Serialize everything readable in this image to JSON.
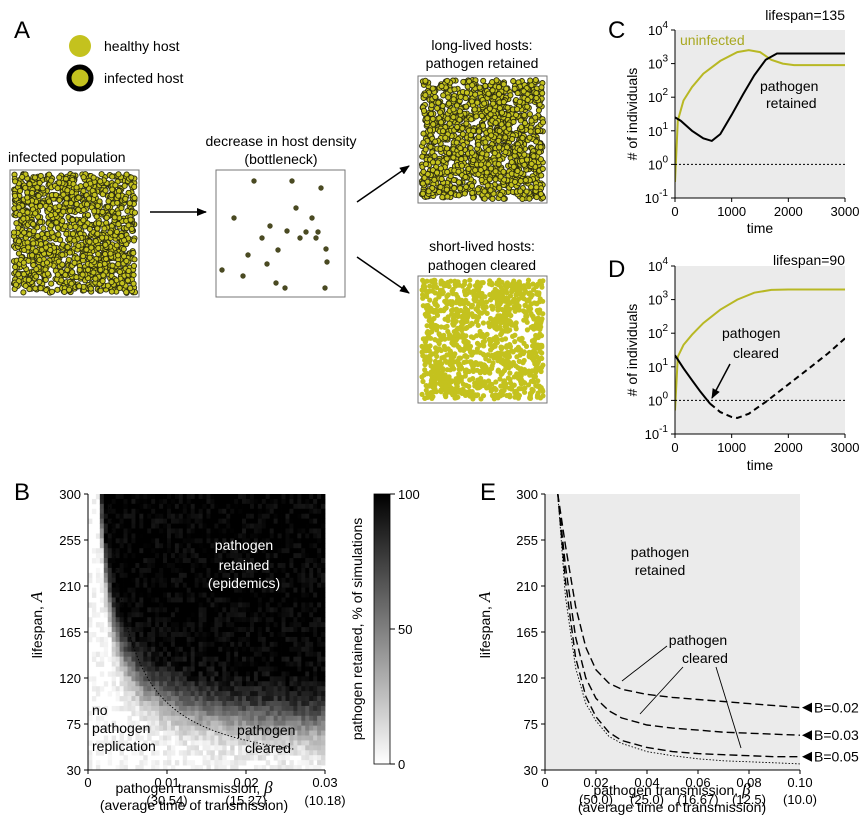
{
  "panel_letters": [
    "A",
    "B",
    "C",
    "D",
    "E"
  ],
  "colors": {
    "host": "#c4c21e",
    "healthy_line": "#b8b824",
    "infected": "#000000",
    "panel_bg": "#ebebeb"
  },
  "panel_a": {
    "legend": {
      "healthy": "healthy host",
      "infected": "infected host"
    },
    "boxes": {
      "infected_population": "infected population",
      "bottleneck_line1": "decrease in host density",
      "bottleneck_line2": "(bottleneck)",
      "retained_line1": "long-lived hosts:",
      "retained_line2": "pathogen retained",
      "cleared_line1": "short-lived hosts:",
      "cleared_line2": "pathogen cleared"
    }
  },
  "chart_data": [
    {
      "id": "C",
      "type": "line",
      "title": "lifespan=135",
      "xlabel": "time",
      "ylabel": "# of individuals",
      "xlim": [
        0,
        3000
      ],
      "xticks": [
        "0",
        "1000",
        "2000",
        "3000"
      ],
      "yscale": "log",
      "ylim": [
        0.1,
        10000
      ],
      "annotations": [
        "uninfected",
        "pathogen",
        "retained"
      ],
      "series": [
        {
          "name": "uninfected",
          "style": "solid",
          "color": "#b8b824",
          "x": [
            0,
            50,
            150,
            300,
            500,
            800,
            1100,
            1300,
            1500,
            1700,
            1900,
            2100,
            2400,
            2700,
            3000
          ],
          "y": [
            0.3,
            20,
            80,
            200,
            500,
            1200,
            2200,
            2500,
            2200,
            1300,
            1000,
            900,
            900,
            900,
            900
          ]
        },
        {
          "name": "",
          "style": "solid",
          "color": "#000000",
          "x": [
            0,
            100,
            300,
            500,
            650,
            800,
            1000,
            1200,
            1400,
            1600,
            1800,
            2000,
            2500,
            3000
          ],
          "y": [
            25,
            20,
            10,
            6,
            5,
            8,
            30,
            120,
            450,
            1300,
            2000,
            2000,
            2000,
            2000
          ]
        },
        {
          "name": "",
          "style": "dotted",
          "color": "#000000",
          "x": [
            0,
            3000
          ],
          "y": [
            1,
            1
          ]
        }
      ]
    },
    {
      "id": "D",
      "type": "line",
      "title": "lifespan=90",
      "xlabel": "time",
      "ylabel": "# of individuals",
      "xlim": [
        0,
        3000
      ],
      "xticks": [
        "0",
        "1000",
        "2000",
        "3000"
      ],
      "yscale": "log",
      "ylim": [
        0.1,
        10000
      ],
      "annotations": [
        "pathogen",
        "cleared"
      ],
      "series": [
        {
          "name": "",
          "style": "solid",
          "color": "#b8b824",
          "x": [
            0,
            50,
            150,
            300,
            500,
            800,
            1100,
            1400,
            1700,
            2000,
            2300,
            2600,
            3000
          ],
          "y": [
            0.5,
            20,
            45,
            90,
            200,
            500,
            1000,
            1600,
            1950,
            2000,
            2000,
            2000,
            2000
          ]
        },
        {
          "name": "",
          "style": "solid",
          "color": "#000000",
          "x": [
            0,
            150,
            300,
            450,
            620
          ],
          "y": [
            22,
            9,
            4,
            1.8,
            0.8
          ]
        },
        {
          "name": "",
          "style": "dashed",
          "color": "#000000",
          "x": [
            620,
            800,
            1000,
            1100,
            1300,
            1600,
            2000,
            2400,
            2700,
            3000
          ],
          "y": [
            0.8,
            0.45,
            0.32,
            0.3,
            0.4,
            0.9,
            3,
            10,
            25,
            70
          ]
        },
        {
          "name": "",
          "style": "dotted",
          "color": "#000000",
          "x": [
            0,
            3000
          ],
          "y": [
            1,
            1
          ]
        }
      ]
    },
    {
      "id": "B",
      "type": "heatmap",
      "xlabel_line1": "pathogen transmission,",
      "xlabel_symbol": "β",
      "xlabel_line2": "(average time of transmission)",
      "ylabel": "lifespan,",
      "ylabel_symbol": "A",
      "xlim": [
        0,
        0.03
      ],
      "ylim": [
        30,
        300
      ],
      "xticks": [
        "0",
        "0.01",
        "0.02",
        "0.03"
      ],
      "xticks_sub": [
        "(30.54)",
        "(15.27)",
        "(10.18)"
      ],
      "yticks": [
        "30",
        "75",
        "120",
        "165",
        "210",
        "255",
        "300"
      ],
      "colorbar": {
        "label": "pathogen  retained,  % of simulations",
        "ticks": [
          "0",
          "50",
          "100"
        ],
        "range": [
          0,
          100
        ]
      },
      "annotations": {
        "retained": [
          "pathogen",
          "retained",
          "(epidemics)"
        ],
        "no_replication": [
          "no",
          "pathogen",
          "replication"
        ],
        "cleared": [
          "pathogen",
          "cleared"
        ]
      },
      "boundary_note": "dotted line: threshold for pathogen replication"
    },
    {
      "id": "E",
      "type": "line",
      "xlabel_line1": "pathogen transmission,",
      "xlabel_symbol": "β",
      "xlabel_line2": "(average time of transmission)",
      "ylabel": "lifespan,",
      "ylabel_symbol": "A",
      "xlim": [
        0,
        0.1
      ],
      "ylim": [
        30,
        300
      ],
      "xticks": [
        "0",
        "0.02",
        "0.04",
        "0.06",
        "0.08",
        "0.10"
      ],
      "xticks_sub": [
        "(50.0)",
        "(25.0)",
        "(16.67)",
        "(12.5)",
        "(10.0)"
      ],
      "yticks": [
        "30",
        "75",
        "120",
        "165",
        "210",
        "255",
        "300"
      ],
      "annotations": {
        "retained": [
          "pathogen",
          "retained"
        ],
        "cleared": [
          "pathogen",
          "cleared"
        ]
      },
      "series": [
        {
          "name": "B=0.02",
          "style": "dashed",
          "x": [
            0.005,
            0.008,
            0.012,
            0.016,
            0.02,
            0.025,
            0.03,
            0.04,
            0.05,
            0.06,
            0.07,
            0.08,
            0.09,
            0.1
          ],
          "y": [
            300,
            250,
            190,
            150,
            128,
            115,
            109,
            104,
            101,
            99,
            97,
            95,
            93,
            91
          ]
        },
        {
          "name": "B=0.03",
          "style": "dashed",
          "x": [
            0.005,
            0.008,
            0.012,
            0.016,
            0.02,
            0.025,
            0.03,
            0.04,
            0.05,
            0.06,
            0.07,
            0.08,
            0.09,
            0.1
          ],
          "y": [
            300,
            230,
            160,
            120,
            100,
            88,
            81,
            74,
            71,
            69,
            67,
            66,
            65,
            64
          ]
        },
        {
          "name": "B=0.05",
          "style": "dashed",
          "x": [
            0.005,
            0.008,
            0.012,
            0.016,
            0.02,
            0.025,
            0.03,
            0.04,
            0.05,
            0.06,
            0.07,
            0.08,
            0.09,
            0.1
          ],
          "y": [
            300,
            215,
            140,
            102,
            82,
            67,
            59,
            52,
            48,
            46,
            45,
            44,
            43,
            43
          ]
        },
        {
          "name": "",
          "style": "dotted",
          "x": [
            0.005,
            0.008,
            0.012,
            0.016,
            0.02,
            0.025,
            0.03,
            0.04,
            0.05,
            0.06,
            0.07,
            0.08,
            0.09,
            0.1
          ],
          "y": [
            300,
            200,
            130,
            95,
            78,
            63,
            56,
            48,
            44,
            41,
            39,
            38,
            37,
            36
          ]
        }
      ]
    }
  ]
}
